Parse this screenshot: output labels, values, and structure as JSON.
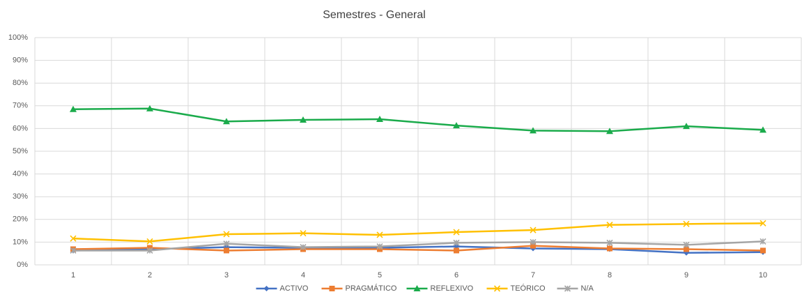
{
  "chart_data": {
    "type": "line",
    "title": "Semestres - General",
    "categories": [
      "1",
      "2",
      "3",
      "4",
      "5",
      "6",
      "7",
      "8",
      "9",
      "10"
    ],
    "series": [
      {
        "name": "ACTIVO",
        "color": "#4472c4",
        "marker": "diamond",
        "values": [
          6.3,
          6.9,
          7.8,
          7.5,
          7.5,
          8.1,
          7.2,
          6.9,
          5.3,
          5.6
        ]
      },
      {
        "name": "PRAGMÁTICO",
        "color": "#ed7d31",
        "marker": "square",
        "values": [
          6.9,
          7.5,
          6.3,
          6.9,
          6.9,
          6.3,
          8.4,
          7.2,
          6.9,
          6.3
        ]
      },
      {
        "name": "REFLEXIVO",
        "color": "#1aab4b",
        "marker": "triangle",
        "values": [
          68.5,
          68.8,
          63.1,
          63.8,
          64.1,
          61.3,
          59.1,
          58.8,
          61.0,
          59.4
        ]
      },
      {
        "name": "TEÓRICO",
        "color": "#ffc000",
        "marker": "x",
        "values": [
          11.6,
          10.3,
          13.5,
          13.9,
          13.2,
          14.4,
          15.3,
          17.6,
          18.0,
          18.3
        ]
      },
      {
        "name": "N/A",
        "color": "#a5a5a5",
        "marker": "star",
        "values": [
          6.3,
          6.3,
          9.3,
          7.8,
          8.1,
          9.7,
          10.0,
          9.7,
          8.8,
          10.3
        ]
      }
    ],
    "ylim": [
      0,
      100
    ],
    "yticks": [
      {
        "value": 0,
        "label": "0%"
      },
      {
        "value": 10,
        "label": "10%"
      },
      {
        "value": 20,
        "label": "20%"
      },
      {
        "value": 30,
        "label": "30%"
      },
      {
        "value": 40,
        "label": "40%"
      },
      {
        "value": 50,
        "label": "50%"
      },
      {
        "value": 60,
        "label": "60%"
      },
      {
        "value": 70,
        "label": "70%"
      },
      {
        "value": 80,
        "label": "80%"
      },
      {
        "value": 90,
        "label": "90%"
      },
      {
        "value": 100,
        "label": "100%"
      }
    ],
    "grid": true,
    "legend": "bottom"
  }
}
